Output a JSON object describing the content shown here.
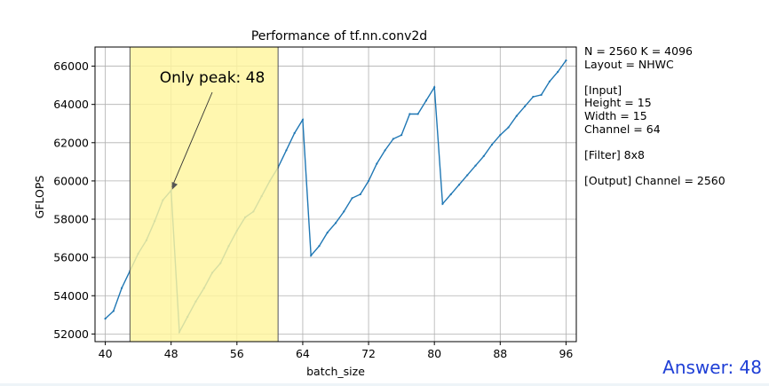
{
  "chart_data": {
    "type": "line",
    "title": "Performance of tf.nn.conv2d",
    "xlabel": "batch_size",
    "ylabel": "GFLOPS",
    "xlim": [
      38.75,
      97.25
    ],
    "ylim": [
      51600,
      67000
    ],
    "xticks": [
      40,
      48,
      56,
      64,
      72,
      80,
      88,
      96
    ],
    "yticks": [
      52000,
      54000,
      56000,
      58000,
      60000,
      62000,
      64000,
      66000
    ],
    "grid": true,
    "series": [
      {
        "color": "#1f77b4",
        "x": [
          40,
          41,
          42,
          43,
          44,
          45,
          46,
          47,
          48,
          49,
          50,
          51,
          52,
          53,
          54,
          55,
          56,
          57,
          58,
          59,
          60,
          61,
          62,
          63,
          64,
          65,
          66,
          67,
          68,
          69,
          70,
          71,
          72,
          73,
          74,
          75,
          76,
          77,
          78,
          79,
          80,
          81,
          82,
          83,
          84,
          85,
          86,
          87,
          88,
          89,
          90,
          91,
          92,
          93,
          94,
          95,
          96
        ],
        "y": [
          52800,
          53200,
          54400,
          55300,
          56200,
          56900,
          57900,
          59000,
          59500,
          52100,
          52900,
          53700,
          54400,
          55200,
          55700,
          56600,
          57400,
          58100,
          58400,
          59200,
          60000,
          60700,
          61600,
          62500,
          63200,
          56100,
          56600,
          57300,
          57800,
          58400,
          59100,
          59300,
          60000,
          60900,
          61600,
          62200,
          62400,
          63500,
          63500,
          64200,
          64900,
          58800,
          59300,
          59800,
          60300,
          60800,
          61300,
          61900,
          62400,
          62800,
          63400,
          63900,
          64400,
          64500,
          65200,
          65700,
          66300
        ]
      }
    ],
    "highlight": {
      "x0": 43,
      "x1": 61,
      "color": "#fff59d"
    },
    "annotation": {
      "text": "Only peak: 48",
      "x": 48,
      "y": 59500
    }
  },
  "info_lines": [
    "N = 2560 K = 4096",
    "Layout = NHWC",
    "",
    "[Input]",
    "Height = 15",
    "Width = 15",
    "Channel = 64",
    "",
    "[Filter] 8x8",
    "",
    "[Output] Channel = 2560"
  ],
  "answer": "Answer: 48"
}
